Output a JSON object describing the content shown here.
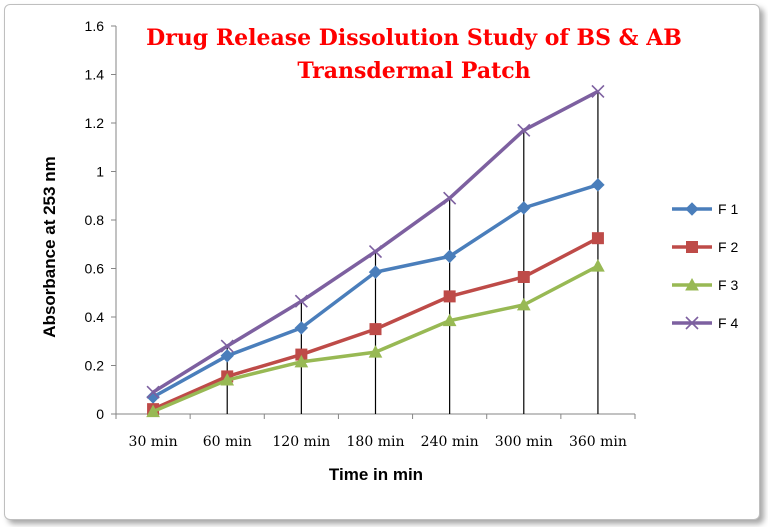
{
  "chart_data": {
    "type": "line",
    "title": [
      "Drug Release Dissolution Study of BS & AB",
      "Transdermal Patch"
    ],
    "xlabel": "Time in min",
    "ylabel": "Absorbance at 253 nm",
    "categories": [
      "30 min",
      "60 min",
      "120 min",
      "180 min",
      "240 min",
      "300 min",
      "360 min"
    ],
    "ylim": [
      0,
      1.6
    ],
    "yticks": [
      "0",
      "0.2",
      "0.4",
      "0.6",
      "0.8",
      "1",
      "1.2",
      "1.4",
      "1.6"
    ],
    "legend_position": "right",
    "drop_lines": true,
    "series": [
      {
        "name": "F 1",
        "color": "#4a7ebb",
        "marker": "diamond",
        "values": [
          0.07,
          0.24,
          0.355,
          0.585,
          0.65,
          0.85,
          0.945
        ]
      },
      {
        "name": "F 2",
        "color": "#be4b48",
        "marker": "square",
        "values": [
          0.02,
          0.155,
          0.245,
          0.35,
          0.485,
          0.565,
          0.725
        ]
      },
      {
        "name": "F 3",
        "color": "#98b954",
        "marker": "triangle",
        "values": [
          0.01,
          0.14,
          0.215,
          0.255,
          0.385,
          0.45,
          0.61
        ]
      },
      {
        "name": "F 4",
        "color": "#7d60a0",
        "marker": "x",
        "values": [
          0.09,
          0.28,
          0.465,
          0.67,
          0.89,
          1.17,
          1.33
        ]
      }
    ]
  }
}
